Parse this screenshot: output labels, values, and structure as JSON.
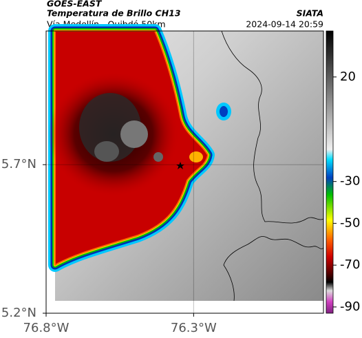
{
  "header": {
    "title": "GOES-EAST",
    "subtitle": "Temperatura de Brillo CH13",
    "source": "SIATA",
    "route": "Vía Medellín - Quibdó 50km",
    "timestamp": "2024-09-14 20:59"
  },
  "map": {
    "lat_range": [
      5.2,
      6.15
    ],
    "lon_range": [
      -76.8,
      -75.86
    ],
    "lat_ticks": [
      {
        "value": 5.7,
        "label": "5.7°N"
      },
      {
        "value": 5.2,
        "label": "5.2°N"
      }
    ],
    "lon_ticks": [
      {
        "value": -76.8,
        "label": "76.8°W"
      },
      {
        "value": -76.3,
        "label": "76.3°W"
      }
    ]
  },
  "colorbar": {
    "range": [
      -93,
      42
    ],
    "ticks": [
      20,
      -30,
      -50,
      -70,
      -90
    ]
  }
}
